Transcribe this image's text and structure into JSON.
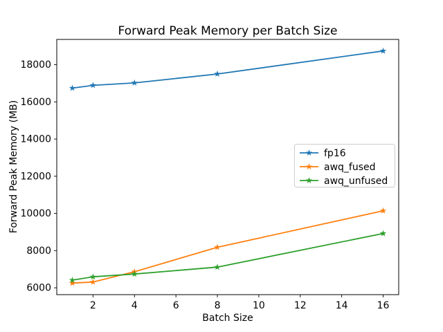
{
  "chart_data": {
    "type": "line",
    "title": "Forward Peak Memory per Batch Size",
    "xlabel": "Batch Size",
    "ylabel": "Forward Peak Memory (MB)",
    "x": [
      1,
      2,
      4,
      8,
      16
    ],
    "series": [
      {
        "name": "fp16",
        "color": "#1f77b4",
        "values": [
          16740,
          16890,
          17020,
          17500,
          18740
        ]
      },
      {
        "name": "awq_fused",
        "color": "#ff7f0e",
        "values": [
          6250,
          6310,
          6860,
          8180,
          10140
        ]
      },
      {
        "name": "awq_unfused",
        "color": "#2ca02c",
        "values": [
          6410,
          6590,
          6740,
          7110,
          8920
        ]
      }
    ],
    "xlim": [
      0.25,
      16.75
    ],
    "ylim": [
      5630,
      19360
    ],
    "x_ticks": [
      2,
      4,
      6,
      8,
      10,
      12,
      14,
      16
    ],
    "y_ticks": [
      6000,
      8000,
      10000,
      12000,
      14000,
      16000,
      18000
    ],
    "marker": "star",
    "grid": false,
    "legend_position": "center-right",
    "axes_color": "#000000",
    "legend_border_color": "#cccccc",
    "background": "#ffffff"
  }
}
